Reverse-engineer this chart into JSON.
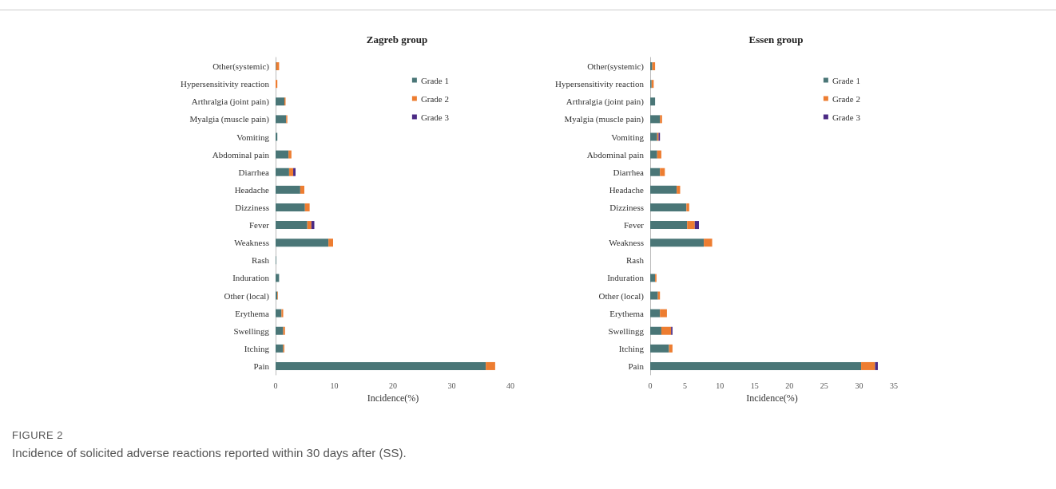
{
  "chart_data": [
    {
      "type": "bar",
      "orientation": "horizontal",
      "stacked": true,
      "title": "Zagreb group",
      "xlabel": "Incidence(%)",
      "categories": [
        "Other(systemic)",
        "Hypersensitivity reaction",
        "Arthralgia (joint pain)",
        "Myalgia (muscle pain)",
        "Vomiting",
        "Abdominal pain",
        "Diarrhea",
        "Headache",
        "Dizziness",
        "Fever",
        "Weakness",
        "Rash",
        "Induration",
        "Other (local)",
        "Erythema",
        "Swellingg",
        "Itching",
        "Pain"
      ],
      "series": [
        {
          "name": "Grade 1",
          "color": "#4a7677",
          "values": [
            0.1,
            null,
            1.5,
            1.8,
            0.3,
            2.2,
            2.3,
            4.2,
            5.0,
            5.4,
            9.0,
            0.1,
            0.6,
            0.3,
            1.0,
            1.3,
            1.3,
            35.8
          ]
        },
        {
          "name": "Grade 2",
          "color": "#ed7d31",
          "values": [
            0.5,
            0.3,
            0.2,
            0.2,
            null,
            0.5,
            0.7,
            0.7,
            0.8,
            0.7,
            0.8,
            null,
            null,
            0.1,
            0.3,
            0.3,
            0.2,
            1.6
          ]
        },
        {
          "name": "Grade 3",
          "color": "#4b2a84",
          "values": [
            null,
            null,
            null,
            null,
            null,
            null,
            0.4,
            null,
            null,
            0.5,
            null,
            null,
            null,
            null,
            null,
            null,
            null,
            null
          ]
        }
      ],
      "xlim": [
        0,
        40
      ],
      "xticks": [
        0,
        10,
        20,
        30,
        40
      ],
      "legend": "top right",
      "grid": false,
      "annotations": [
        "FIGURE 2",
        "Incidence of solicited adverse reactions reported within 30 days after (SS)."
      ]
    },
    {
      "type": "bar",
      "orientation": "horizontal",
      "stacked": true,
      "title": "Essen group",
      "xlabel": "Incidence(%)",
      "categories": [
        "Other(systemic)",
        "Hypersensitivity reaction",
        "Arthralgia (joint pain)",
        "Myalgia (muscle pain)",
        "Vomiting",
        "Abdominal pain",
        "Diarrhea",
        "Headache",
        "Dizziness",
        "Fever",
        "Weakness",
        "Rash",
        "Induration",
        "Other (local)",
        "Erythema",
        "Swellingg",
        "Itching",
        "Pain"
      ],
      "series": [
        {
          "name": "Grade 1",
          "color": "#4a7677",
          "values": [
            0.3,
            0.2,
            0.7,
            1.4,
            1.0,
            1.0,
            1.4,
            3.8,
            5.2,
            5.3,
            7.7,
            null,
            0.7,
            1.1,
            1.4,
            1.6,
            2.7,
            30.3
          ]
        },
        {
          "name": "Grade 2",
          "color": "#ed7d31",
          "values": [
            0.4,
            0.3,
            null,
            0.3,
            0.2,
            0.6,
            0.7,
            0.5,
            0.4,
            1.1,
            1.2,
            null,
            0.2,
            0.3,
            1.0,
            1.4,
            0.5,
            2.0
          ]
        },
        {
          "name": "Grade 3",
          "color": "#4b2a84",
          "values": [
            null,
            null,
            null,
            null,
            0.2,
            null,
            null,
            null,
            null,
            0.6,
            null,
            null,
            null,
            null,
            null,
            0.2,
            null,
            0.4
          ]
        }
      ],
      "xlim": [
        0,
        35
      ],
      "xticks": [
        0,
        5,
        10,
        15,
        20,
        25,
        30,
        35
      ],
      "legend": "top right",
      "grid": false
    }
  ]
}
